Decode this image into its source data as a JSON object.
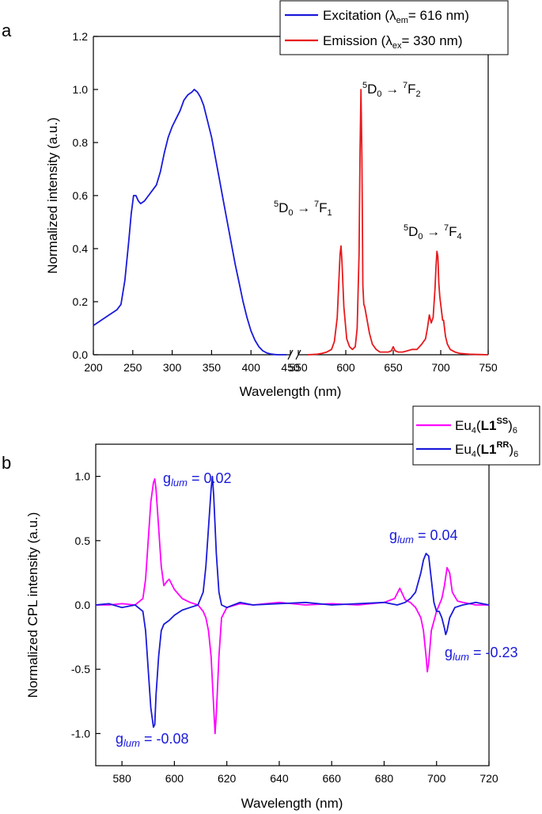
{
  "chart_data": [
    {
      "panel_label": "a",
      "type": "line",
      "xlabel": "Wavelength (nm)",
      "ylabel": "Normalized intensity (a.u.)",
      "ylim": [
        0,
        1.2
      ],
      "y_ticks": [
        "0.0",
        "0.2",
        "0.4",
        "0.6",
        "0.8",
        "1.0",
        "1.2"
      ],
      "x_ticks_left": [
        "200",
        "250",
        "300",
        "350",
        "400",
        "450"
      ],
      "x_ticks_right": [
        "550",
        "600",
        "650",
        "700",
        "750"
      ],
      "xlim_left": [
        200,
        450
      ],
      "xlim_right": [
        550,
        750
      ],
      "axis_break": true,
      "legend": [
        {
          "prefix": "Excitation (λ",
          "sub": "em",
          "suffix": "= 616 nm)",
          "color": "#1a1adb"
        },
        {
          "prefix": "Emission (λ",
          "sub": "ex",
          "suffix": "= 330 nm)",
          "color": "#e8191c"
        }
      ],
      "annotations": [
        {
          "sup1": "5",
          "base1": "D",
          "sub1": "0",
          "arrow": " → ",
          "sup2": "7",
          "base2": "F",
          "sub2": "2"
        },
        {
          "sup1": "5",
          "base1": "D",
          "sub1": "0",
          "arrow": " → ",
          "sup2": "7",
          "base2": "F",
          "sub2": "1"
        },
        {
          "sup1": "5",
          "base1": "D",
          "sub1": "0",
          "arrow": " → ",
          "sup2": "7",
          "base2": "F",
          "sub2": "4"
        }
      ],
      "series": [
        {
          "name": "Excitation",
          "color": "#1a1adb",
          "x": [
            200,
            210,
            220,
            230,
            235,
            240,
            245,
            248,
            251,
            254,
            257,
            260,
            265,
            270,
            275,
            280,
            285,
            290,
            295,
            300,
            305,
            310,
            315,
            320,
            325,
            328,
            332,
            336,
            340,
            345,
            350,
            355,
            360,
            365,
            370,
            375,
            380,
            385,
            390,
            395,
            400,
            405,
            410,
            415,
            420,
            425,
            430,
            435,
            440,
            445
          ],
          "y": [
            0.11,
            0.13,
            0.15,
            0.17,
            0.19,
            0.28,
            0.43,
            0.53,
            0.6,
            0.6,
            0.58,
            0.57,
            0.58,
            0.6,
            0.62,
            0.64,
            0.69,
            0.76,
            0.82,
            0.86,
            0.89,
            0.92,
            0.96,
            0.98,
            0.99,
            1.0,
            0.99,
            0.97,
            0.94,
            0.88,
            0.82,
            0.74,
            0.66,
            0.58,
            0.5,
            0.42,
            0.34,
            0.27,
            0.2,
            0.14,
            0.09,
            0.055,
            0.03,
            0.015,
            0.007,
            0.003,
            0.001,
            0.0,
            0.0,
            0.0
          ]
        },
        {
          "name": "Emission",
          "color": "#e8191c",
          "x": [
            560,
            570,
            575,
            580,
            585,
            588,
            591,
            593,
            594,
            595,
            596,
            598,
            601,
            604,
            607,
            610,
            612,
            614,
            615,
            616,
            617,
            618,
            619,
            620,
            622,
            625,
            628,
            632,
            636,
            640,
            645,
            648,
            650,
            652,
            655,
            660,
            665,
            670,
            675,
            680,
            684,
            686,
            688,
            690,
            692,
            694,
            695,
            696,
            697,
            698,
            699,
            700,
            701,
            702,
            703,
            704,
            705,
            707,
            710,
            715,
            720,
            730,
            740,
            750
          ],
          "y": [
            0.0,
            0.002,
            0.005,
            0.01,
            0.02,
            0.05,
            0.14,
            0.3,
            0.38,
            0.41,
            0.35,
            0.18,
            0.06,
            0.03,
            0.02,
            0.03,
            0.1,
            0.38,
            0.76,
            1.0,
            0.74,
            0.26,
            0.19,
            0.18,
            0.14,
            0.08,
            0.04,
            0.02,
            0.01,
            0.01,
            0.01,
            0.015,
            0.03,
            0.015,
            0.01,
            0.01,
            0.015,
            0.02,
            0.02,
            0.04,
            0.06,
            0.1,
            0.15,
            0.12,
            0.14,
            0.25,
            0.33,
            0.39,
            0.37,
            0.27,
            0.22,
            0.19,
            0.16,
            0.13,
            0.13,
            0.1,
            0.07,
            0.04,
            0.02,
            0.01,
            0.005,
            0.002,
            0.001,
            0.0
          ]
        }
      ]
    },
    {
      "panel_label": "b",
      "type": "line",
      "xlabel": "Wavelength (nm)",
      "ylabel": "Normalized CPL intensity (a.u.)",
      "xlim": [
        570,
        720
      ],
      "ylim": [
        -1.25,
        1.25
      ],
      "x_ticks": [
        "580",
        "600",
        "620",
        "640",
        "660",
        "680",
        "700",
        "720"
      ],
      "y_ticks": [
        "-1.0",
        "-0.5",
        "0.0",
        "0.5",
        "1.0"
      ],
      "legend": [
        {
          "prefix": "Eu",
          "sub1": "4",
          "open": "(",
          "bold": "L1",
          "sup": "SS",
          "close": ")",
          "sub2": "6",
          "color": "#ff00ff"
        },
        {
          "prefix": "Eu",
          "sub1": "4",
          "open": "(",
          "bold": "L1",
          "sup": "RR",
          "close": ")",
          "sub2": "6",
          "color": "#1a1adb"
        }
      ],
      "annotations": [
        {
          "g": "g",
          "sub": "lum",
          "value": " = 0.02"
        },
        {
          "g": "g",
          "sub": "lum",
          "value": " = 0.04"
        },
        {
          "g": "g",
          "sub": "lum",
          "value": " = -0.23"
        },
        {
          "g": "g",
          "sub": "lum",
          "value": " = -0.08"
        }
      ],
      "series": [
        {
          "name": "Eu4(L1SS)6",
          "color": "#ff00ff",
          "x": [
            570,
            575,
            580,
            585,
            588,
            589,
            590,
            591,
            592,
            592.5,
            593,
            594,
            595,
            596,
            597,
            598,
            600,
            603,
            606,
            609,
            611,
            612,
            613,
            614,
            615,
            615.5,
            616,
            617,
            618,
            620,
            625,
            630,
            640,
            650,
            660,
            670,
            680,
            684,
            686,
            688,
            690,
            692,
            694,
            695,
            696,
            696.5,
            697,
            698,
            700,
            702,
            703,
            704,
            705,
            706,
            708,
            710,
            715,
            720
          ],
          "y": [
            0.0,
            0.0,
            0.01,
            0.0,
            0.05,
            0.2,
            0.5,
            0.8,
            0.95,
            0.98,
            0.9,
            0.6,
            0.3,
            0.15,
            0.18,
            0.2,
            0.12,
            0.05,
            0.02,
            0.0,
            -0.05,
            -0.1,
            -0.2,
            -0.4,
            -0.8,
            -1.0,
            -0.85,
            -0.4,
            -0.1,
            -0.02,
            0.01,
            0.0,
            0.02,
            0.0,
            0.01,
            0.0,
            0.02,
            0.05,
            0.13,
            0.04,
            0.02,
            -0.02,
            -0.1,
            -0.2,
            -0.4,
            -0.52,
            -0.45,
            -0.2,
            -0.05,
            0.05,
            0.15,
            0.29,
            0.25,
            0.1,
            0.03,
            0.02,
            0.0,
            0.0
          ]
        },
        {
          "name": "Eu4(L1RR)6",
          "color": "#1a1adb",
          "x": [
            570,
            575,
            580,
            585,
            588,
            589,
            590,
            591,
            592,
            592.5,
            593,
            594,
            595,
            596,
            598,
            600,
            603,
            606,
            609,
            611,
            612,
            613,
            614,
            614.5,
            615,
            616,
            617,
            618,
            620,
            625,
            630,
            640,
            650,
            660,
            670,
            680,
            685,
            688,
            690,
            692,
            694,
            695,
            696,
            697,
            698,
            699,
            700,
            701,
            702,
            703,
            703.5,
            704,
            705,
            707,
            710,
            715,
            720
          ],
          "y": [
            0.0,
            0.01,
            -0.02,
            0.0,
            -0.05,
            -0.2,
            -0.5,
            -0.8,
            -0.95,
            -0.93,
            -0.7,
            -0.4,
            -0.2,
            -0.15,
            -0.12,
            -0.08,
            -0.04,
            -0.02,
            0.0,
            0.1,
            0.3,
            0.6,
            0.9,
            1.0,
            0.85,
            0.4,
            0.1,
            0.0,
            -0.02,
            0.02,
            0.0,
            0.01,
            0.02,
            0.0,
            0.01,
            0.02,
            0.0,
            0.02,
            0.05,
            0.1,
            0.25,
            0.35,
            0.4,
            0.38,
            0.2,
            0.02,
            -0.05,
            -0.05,
            -0.1,
            -0.18,
            -0.23,
            -0.2,
            -0.1,
            -0.02,
            0.0,
            0.02,
            0.0
          ]
        }
      ]
    }
  ]
}
